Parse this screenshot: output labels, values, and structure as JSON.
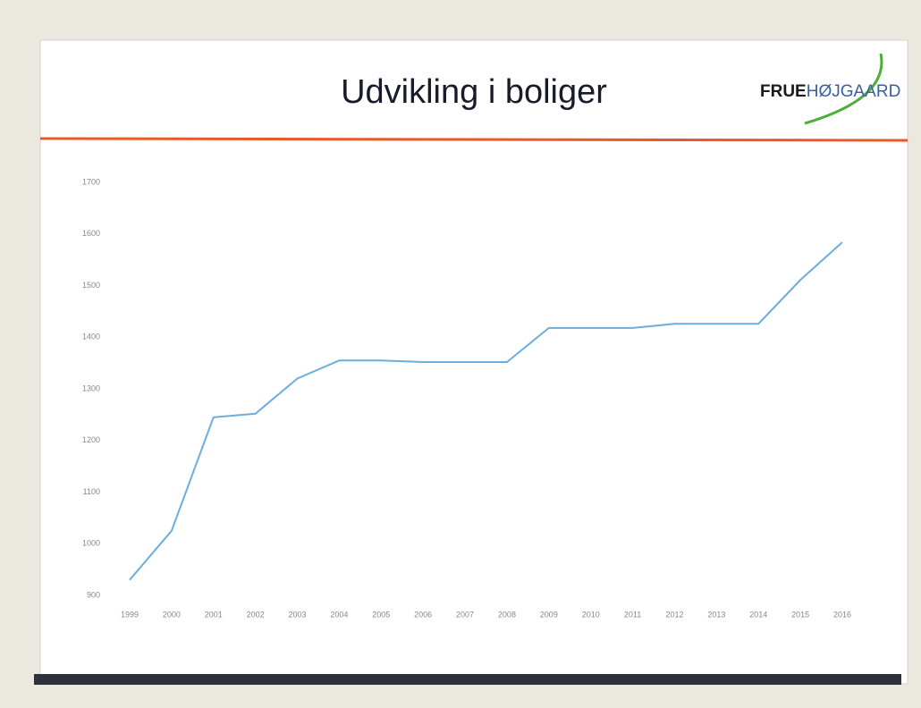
{
  "chart_data": {
    "type": "line",
    "title": "Udvikling  i boliger",
    "categories": [
      "1999",
      "2000",
      "2001",
      "2002",
      "2003",
      "2004",
      "2005",
      "2006",
      "2007",
      "2008",
      "2009",
      "2010",
      "2011",
      "2012",
      "2013",
      "2014",
      "2015",
      "2016"
    ],
    "values": [
      930,
      1025,
      1245,
      1252,
      1320,
      1355,
      1355,
      1352,
      1352,
      1352,
      1418,
      1418,
      1418,
      1426,
      1426,
      1426,
      1511,
      1584
    ],
    "color": "#6aaee0",
    "ylim": [
      900,
      1700
    ],
    "yticks": [
      900,
      1000,
      1100,
      1200,
      1300,
      1400,
      1500,
      1600,
      1700
    ],
    "grid": false
  },
  "logo": {
    "part1": "FRUE",
    "part2": "HØJGAARD"
  }
}
